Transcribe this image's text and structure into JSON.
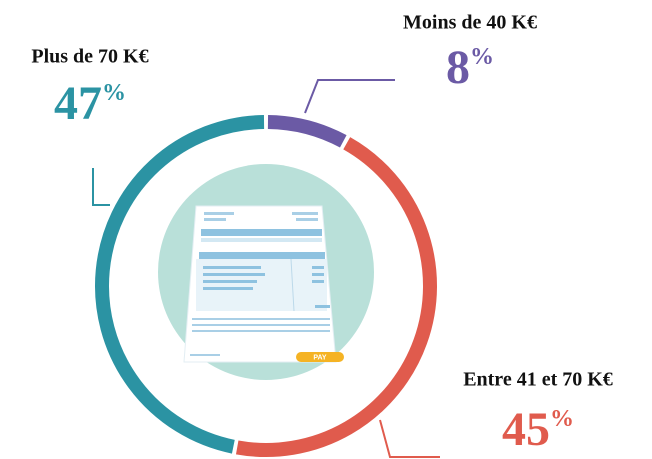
{
  "chart_data": {
    "type": "donut",
    "categories": [
      "Moins de 40 K€",
      "Entre 41 et 70 K€",
      "Plus de 70 K€"
    ],
    "values": [
      8,
      45,
      47
    ],
    "value_labels": [
      "8%",
      "45%",
      "47%"
    ],
    "colors": [
      "#6b5aa5",
      "#e05b4d",
      "#2b93a3"
    ]
  },
  "illustration": {
    "button": "PAY"
  }
}
